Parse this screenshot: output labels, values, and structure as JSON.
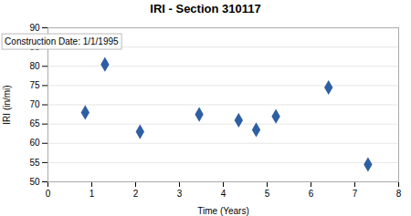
{
  "chart_data": {
    "type": "scatter",
    "title": "IRI - Section 310117",
    "xlabel": "Time (Years)",
    "ylabel": "IRI (in/mi)",
    "annotation": "Construction Date: 1/1/1995",
    "x": [
      0.85,
      1.3,
      2.1,
      3.45,
      4.35,
      4.75,
      5.2,
      6.4,
      7.3
    ],
    "values": [
      68,
      80.5,
      63,
      67.5,
      66,
      63.5,
      67,
      74.5,
      54.5
    ],
    "xlim": [
      0,
      8
    ],
    "ylim": [
      50,
      90
    ],
    "xticks": [
      0,
      1,
      2,
      3,
      4,
      5,
      6,
      7,
      8
    ],
    "yticks": [
      50,
      55,
      60,
      65,
      70,
      75,
      80,
      85,
      90
    ],
    "color": "#2e5fa3",
    "marker": "diamond",
    "grid": "y"
  }
}
